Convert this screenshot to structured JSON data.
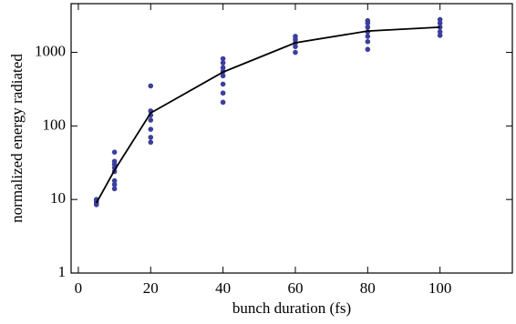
{
  "chart_data": {
    "type": "scatter",
    "xlabel": "bunch duration (fs)",
    "ylabel": "normalized energy radiated",
    "xlim": [
      -2,
      120
    ],
    "xticks": [
      0,
      20,
      40,
      60,
      80,
      100
    ],
    "ylim": [
      1,
      4600
    ],
    "yticks": [
      1,
      10,
      100,
      1000
    ],
    "yscale": "log",
    "series": [
      {
        "mode": "markers",
        "color": "#3b3f9c",
        "x": [
          5,
          5,
          5,
          5,
          10,
          10,
          10,
          10,
          10,
          10,
          10,
          10,
          20,
          20,
          20,
          20,
          20,
          20,
          20,
          40,
          40,
          40,
          40,
          40,
          40,
          40,
          40,
          60,
          60,
          60,
          60,
          60,
          80,
          80,
          80,
          80,
          80,
          80,
          80,
          100,
          100,
          100,
          100,
          100
        ],
        "y": [
          8.5,
          9,
          9.5,
          10,
          14,
          16,
          18,
          24,
          27,
          30,
          33,
          44,
          60,
          70,
          90,
          120,
          140,
          160,
          350,
          210,
          280,
          370,
          480,
          550,
          620,
          720,
          820,
          1000,
          1200,
          1350,
          1500,
          1650,
          1100,
          1400,
          1650,
          1900,
          2200,
          2500,
          2700,
          1700,
          1900,
          2200,
          2500,
          2800
        ]
      },
      {
        "mode": "line",
        "color": "#000000",
        "x": [
          5,
          10,
          20,
          40,
          60,
          80,
          100
        ],
        "y": [
          9,
          25,
          150,
          540,
          1350,
          1950,
          2200
        ]
      }
    ]
  }
}
